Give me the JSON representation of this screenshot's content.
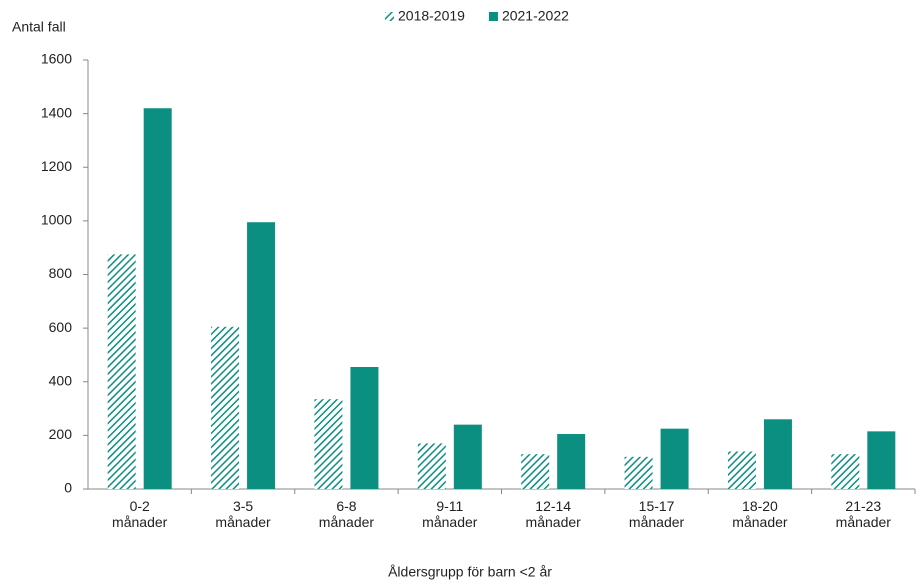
{
  "chart_data": {
    "type": "bar",
    "y_label": "Antal fall",
    "x_label": "Åldersgrupp för barn <2 år",
    "categories": [
      "0-2 månader",
      "3-5 månader",
      "6-8 månader",
      "9-11 månader",
      "12-14 månader",
      "15-17 månader",
      "18-20 månader",
      "21-23 månader"
    ],
    "series": [
      {
        "name": "2018-2019",
        "color": "#0b8f80",
        "hatch": true,
        "values": [
          875,
          605,
          335,
          170,
          130,
          120,
          140,
          130
        ]
      },
      {
        "name": "2021-2022",
        "color": "#0b8f80",
        "hatch": false,
        "values": [
          1420,
          995,
          455,
          240,
          205,
          225,
          260,
          215
        ]
      }
    ],
    "ylim": [
      0,
      1600
    ],
    "yticks": [
      0,
      200,
      400,
      600,
      800,
      1000,
      1200,
      1400,
      1600
    ],
    "legend": "top"
  }
}
